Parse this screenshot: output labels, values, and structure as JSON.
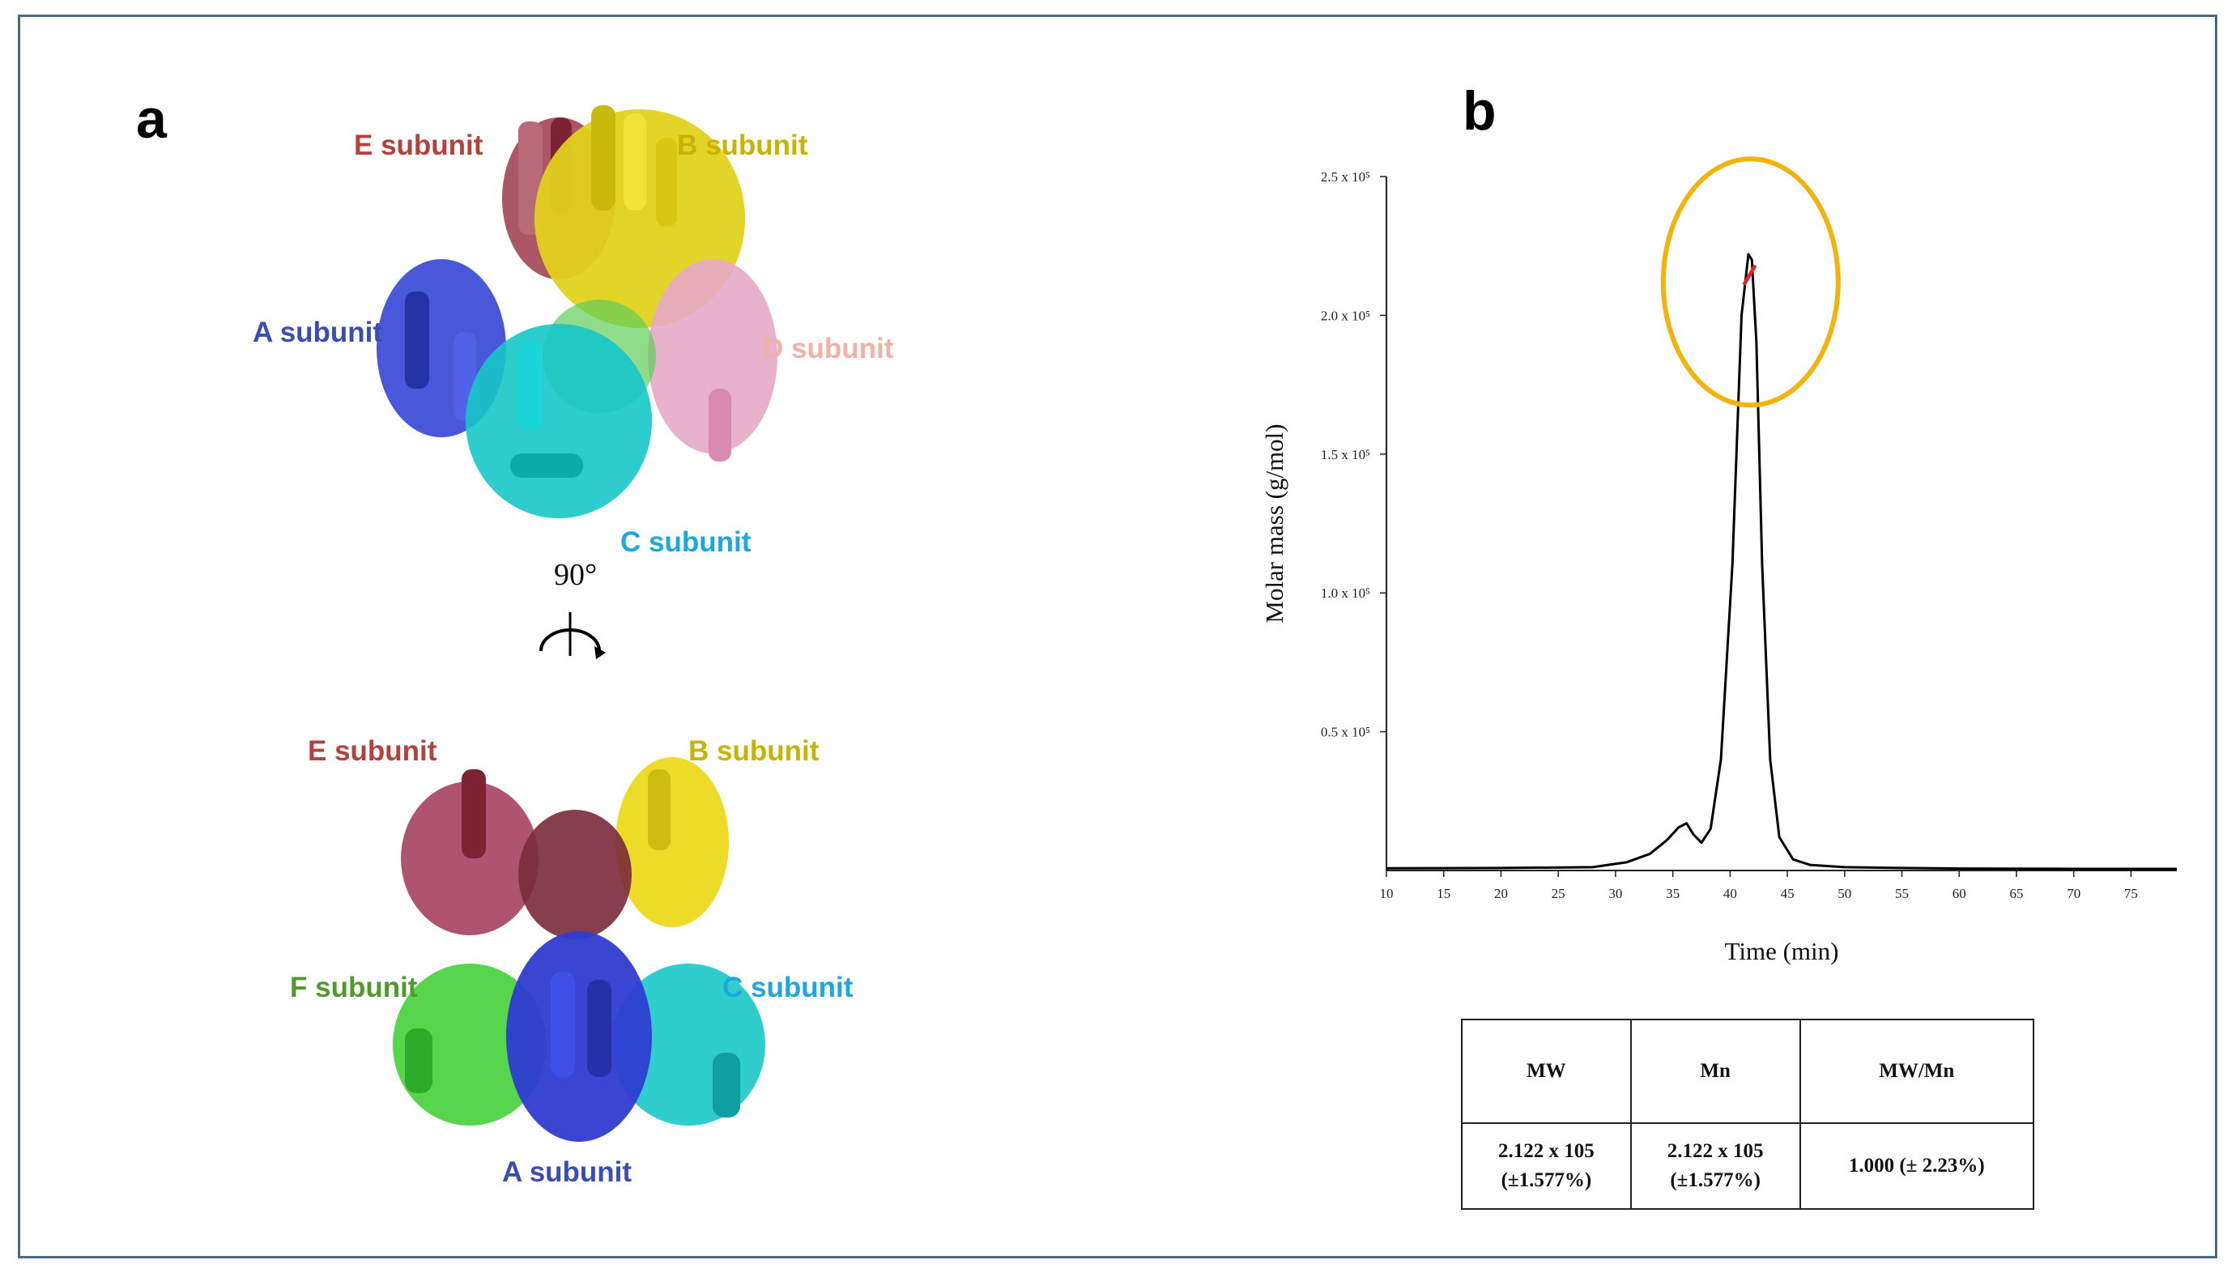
{
  "panel_a": {
    "letter": "a",
    "rotation_label": "90°",
    "top_view": {
      "labels": [
        {
          "text": "E subunit",
          "color": "#b5413c"
        },
        {
          "text": "B subunit",
          "color": "#c8b400"
        },
        {
          "text": "A subunit",
          "color": "#3a4db5"
        },
        {
          "text": "D subunit",
          "color": "#efb2a8"
        },
        {
          "text": "C subunit",
          "color": "#1aa8e0"
        }
      ]
    },
    "side_view": {
      "labels": [
        {
          "text": "E subunit",
          "color": "#b5413c"
        },
        {
          "text": "B subunit",
          "color": "#c8b400"
        },
        {
          "text": "F subunit",
          "color": "#4f9a2e"
        },
        {
          "text": "C subunit",
          "color": "#1aa8e0"
        },
        {
          "text": "A subunit",
          "color": "#3a4db5"
        }
      ]
    }
  },
  "panel_b": {
    "letter": "b",
    "chart_data": {
      "type": "line",
      "title": "",
      "xlabel": "Time (min)",
      "ylabel": "Molar mass (g/mol)",
      "xlim": [
        10,
        79
      ],
      "ylim": [
        0,
        250000
      ],
      "x_ticks": [
        10,
        15,
        20,
        25,
        30,
        35,
        40,
        45,
        50,
        55,
        60,
        65,
        70,
        75
      ],
      "y_ticks": [
        {
          "value": 50000,
          "label": "0.5 x 10⁵"
        },
        {
          "value": 100000,
          "label": "1.0 x 10⁵"
        },
        {
          "value": 150000,
          "label": "1.5 x 10⁵"
        },
        {
          "value": 200000,
          "label": "2.0 x 10⁵"
        },
        {
          "value": 250000,
          "label": "2.5 x 10⁵"
        }
      ],
      "series": [
        {
          "name": "signal",
          "color": "#000000",
          "x": [
            10,
            20,
            28,
            31,
            33,
            34.5,
            35.5,
            36.2,
            36.8,
            37.5,
            38.3,
            39.2,
            40.2,
            41,
            41.6,
            41.9,
            42.3,
            42.8,
            43.5,
            44.3,
            45.5,
            47,
            50,
            55,
            60,
            70,
            79
          ],
          "y": [
            800,
            900,
            1200,
            3000,
            6000,
            11000,
            15500,
            17000,
            13000,
            10000,
            15000,
            40000,
            110000,
            200000,
            222000,
            220000,
            190000,
            110000,
            40000,
            12000,
            4000,
            2000,
            1200,
            900,
            700,
            600,
            600
          ]
        },
        {
          "name": "molar-mass",
          "color": "#e8202a",
          "x": [
            41.2,
            42.2
          ],
          "y": [
            211000,
            218000
          ]
        }
      ],
      "annotation": {
        "shape": "ellipse",
        "color": "#f2b40c",
        "center_x": 41.8,
        "center_y": 212000
      }
    },
    "table": {
      "headers": [
        "MW",
        "Mn",
        "MW/Mn"
      ],
      "rows": [
        [
          [
            "2.122 x 105",
            "(±1.577%)"
          ],
          [
            "2.122 x 105",
            "(±1.577%)"
          ],
          [
            "1.000 (± 2.23%)"
          ]
        ]
      ]
    }
  }
}
